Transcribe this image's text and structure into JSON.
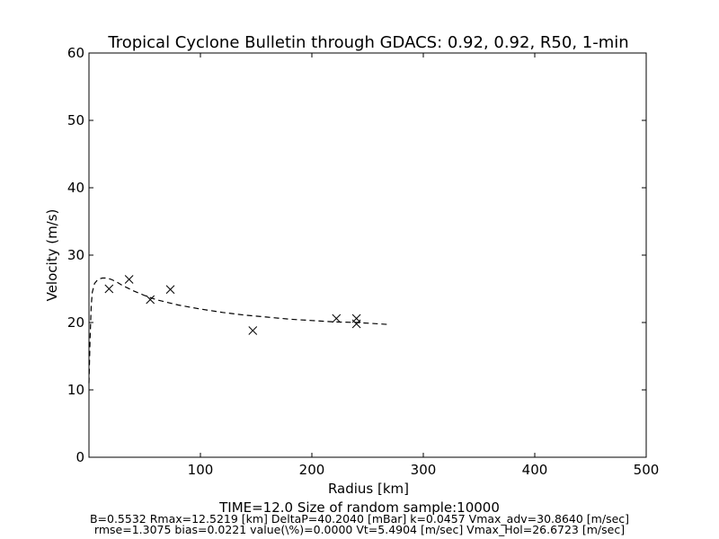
{
  "chart_data": {
    "type": "scatter",
    "title": "Tropical Cyclone Bulletin through GDACS: 0.92, 0.92, R50, 1-min",
    "xlabel": "Radius [km]",
    "ylabel": "Velocity (m/s)",
    "xlim": [
      0,
      500
    ],
    "ylim": [
      0,
      60
    ],
    "x_ticks": [
      100,
      200,
      300,
      400,
      500
    ],
    "y_ticks": [
      0,
      10,
      20,
      30,
      40,
      50,
      60
    ],
    "grid": false,
    "series": [
      {
        "marker": "x",
        "color": "#000000",
        "x": [
          18,
          36,
          55,
          73,
          147,
          222,
          240,
          240
        ],
        "y": [
          25.0,
          26.4,
          23.4,
          24.9,
          18.8,
          20.6,
          20.6,
          19.8
        ]
      },
      {
        "style": "dashed",
        "color": "#000000",
        "x": [
          0,
          1,
          2,
          3,
          5,
          8,
          12,
          16,
          20,
          25,
          30,
          40,
          50,
          60,
          70,
          80,
          90,
          100,
          120,
          140,
          160,
          180,
          200,
          220,
          240,
          260,
          270
        ],
        "y": [
          11.0,
          17.5,
          22.5,
          24.5,
          25.8,
          26.4,
          26.6,
          26.6,
          26.4,
          26.0,
          25.5,
          24.7,
          24.0,
          23.4,
          23.0,
          22.6,
          22.3,
          22.0,
          21.5,
          21.1,
          20.8,
          20.5,
          20.3,
          20.1,
          20.0,
          19.8,
          19.7
        ]
      }
    ]
  },
  "footer": {
    "line1": "TIME=12.0      Size of random sample:10000",
    "line2": "B=0.5532 Rmax=12.5219 [km]  DeltaP=40.2040 [mBar] k=0.0457 Vmax_adv=30.8640 [m/sec]",
    "line3": "rmse=1.3075 bias=0.0221 value(\\%)=0.0000 Vt=5.4904 [m/sec] Vmax_Hol=26.6723 [m/sec]"
  }
}
